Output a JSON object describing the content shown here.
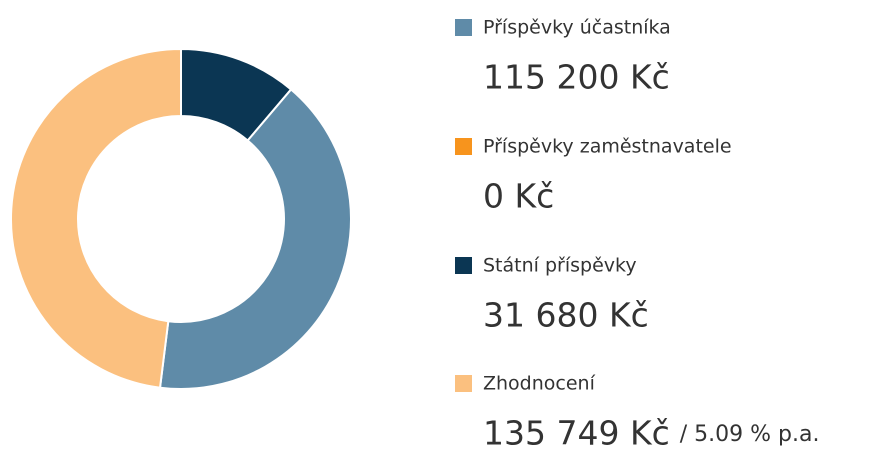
{
  "chart_data": {
    "type": "pie",
    "categories": [
      "Příspěvky účastníka",
      "Příspěvky zaměstnavatele",
      "Státní příspěvky",
      "Zhodnocení"
    ],
    "values": [
      115200,
      0,
      31680,
      135749
    ],
    "value_labels": [
      "115 200 Kč",
      "0 Kč",
      "31 680 Kč",
      "135 749 Kč"
    ],
    "colors": [
      "#5f8ba8",
      "#f7941d",
      "#0b3653",
      "#fbc07f"
    ],
    "slice_order": [
      2,
      0,
      1,
      3
    ],
    "annotation": "/ 5.09 % p.a."
  }
}
